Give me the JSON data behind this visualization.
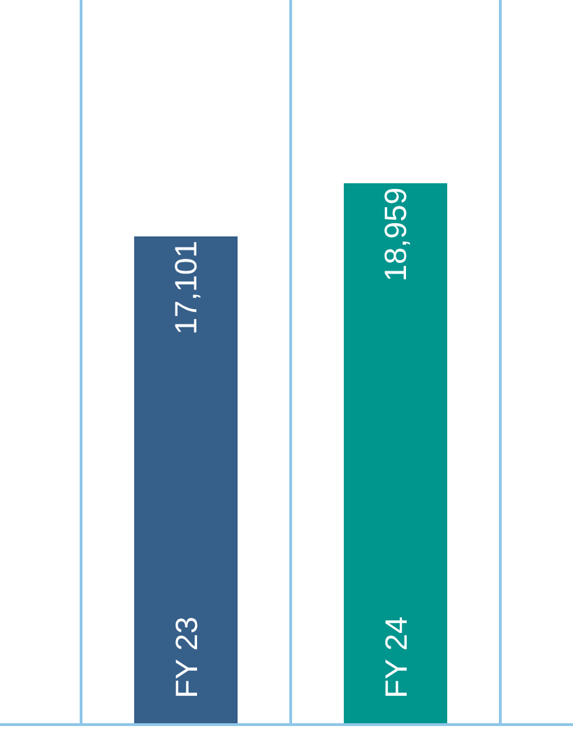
{
  "chart_data": {
    "type": "bar",
    "categories": [
      "FY 23",
      "FY 24"
    ],
    "values": [
      17101,
      18959
    ],
    "colors": [
      "#365f8a",
      "#00958d"
    ],
    "value_labels": [
      "17,101",
      "18,959"
    ],
    "ylim": [
      0,
      25400
    ],
    "grid": "x",
    "tick_labels": false
  }
}
